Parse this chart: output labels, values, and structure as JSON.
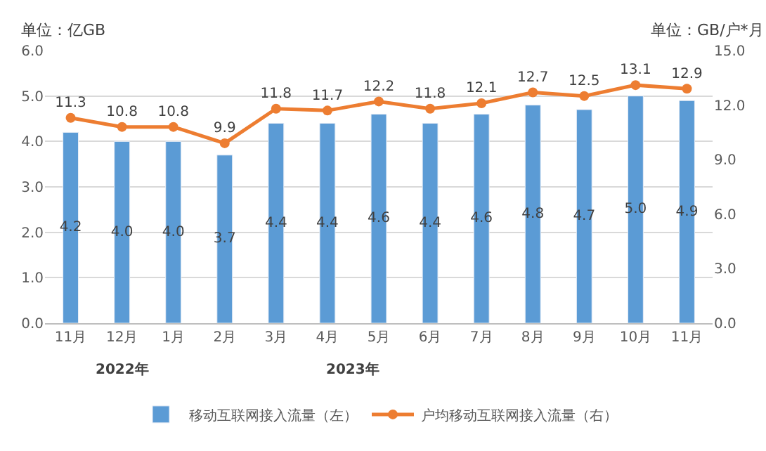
{
  "chart_data": {
    "type": "bar",
    "ylabel": "单位：亿GB",
    "y2label": "单位：GB/户*月",
    "categories": [
      "11月",
      "12月",
      "1月",
      "2月",
      "3月",
      "4月",
      "5月",
      "6月",
      "7月",
      "8月",
      "9月",
      "10月",
      "11月"
    ],
    "series": [
      {
        "name": "移动互联网接入流量（左）",
        "color": "#5b9bd5",
        "values": [
          4.2,
          4.0,
          4.0,
          3.7,
          4.4,
          4.4,
          4.6,
          4.4,
          4.6,
          4.8,
          4.7,
          5.0,
          4.9
        ],
        "value_labels": [
          "4.2",
          "4.0",
          "4.0",
          "3.7",
          "4.4",
          "4.4",
          "4.6",
          "4.4",
          "4.6",
          "4.8",
          "4.7",
          "5.0",
          "4.9"
        ]
      },
      {
        "name": "户均移动互联网接入流量（右）",
        "type": "line",
        "axis": "y2",
        "color": "#ed7d31",
        "marker": "circle",
        "values": [
          11.3,
          10.8,
          10.8,
          9.9,
          11.8,
          11.7,
          12.2,
          11.8,
          12.1,
          12.7,
          12.5,
          13.1,
          12.9
        ]
      }
    ],
    "ylim": [
      0,
      6
    ],
    "yticks": [
      {
        "value": 0,
        "label": "0.0"
      },
      {
        "value": 1,
        "label": "1.0"
      },
      {
        "value": 2,
        "label": "2.0"
      },
      {
        "value": 3,
        "label": "3.0"
      },
      {
        "value": 4,
        "label": "4.0"
      },
      {
        "value": 5,
        "label": "5.0"
      },
      {
        "value": 6,
        "label": "6.0"
      }
    ],
    "y2lim": [
      0,
      15
    ],
    "y2ticks": [
      {
        "value": 0,
        "label": "0.0"
      },
      {
        "value": 3,
        "label": "3.0"
      },
      {
        "value": 6,
        "label": "6.0"
      },
      {
        "value": 9,
        "label": "9.0"
      },
      {
        "value": 12,
        "label": "12.0"
      },
      {
        "value": 15,
        "label": "15.0"
      }
    ],
    "annotations": [
      "2022年",
      "2023年"
    ],
    "data_labels": true,
    "grid": "y",
    "legend": "bottom"
  }
}
